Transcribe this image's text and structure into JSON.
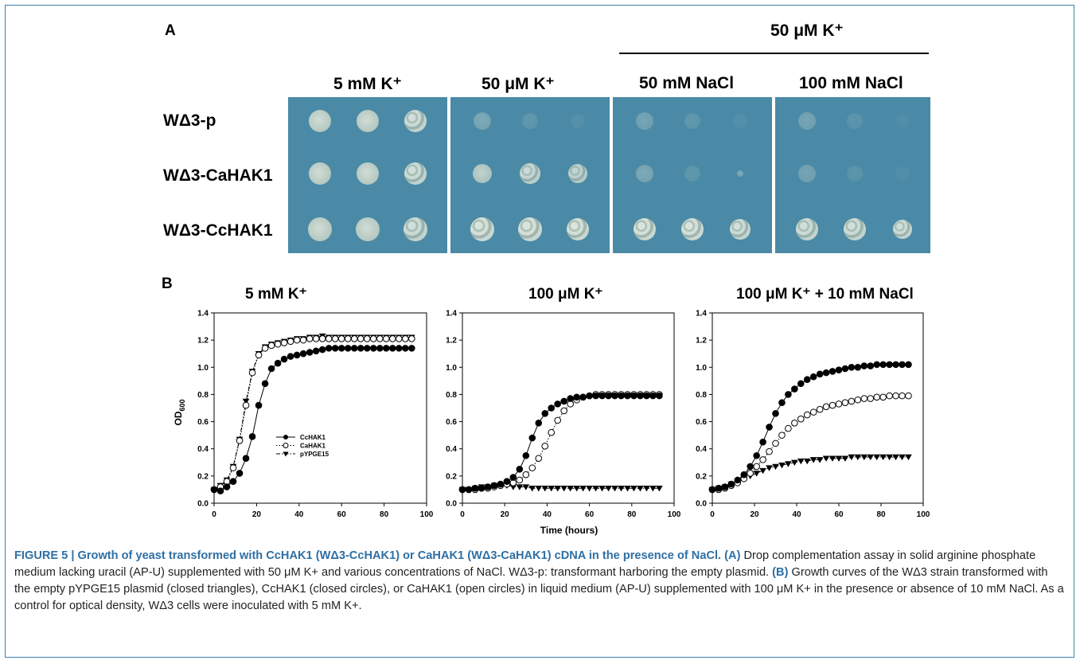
{
  "panel_a": {
    "letter": "A",
    "group_header": "50 μM K⁺",
    "column_headers": [
      "5 mM K⁺",
      "50 μM K⁺",
      "50 mM NaCl",
      "100 mM NaCl"
    ],
    "row_labels": [
      "WΔ3-p",
      "WΔ3-CaHAK1",
      "WΔ3-CcHAK1"
    ],
    "colors": {
      "agar": "#4a8aa6",
      "separator": "#ffffff"
    }
  },
  "panel_b": {
    "letter": "B",
    "ylabel": "OD600",
    "xlabel": "Time (hours)",
    "legend": [
      "CcHAK1",
      "CaHAK1",
      "pYPGE15"
    ]
  },
  "chart_data": [
    {
      "type": "scatter",
      "title": "5 mM K⁺",
      "xlabel": "",
      "ylabel": "OD600",
      "xlim": [
        0,
        100
      ],
      "ylim": [
        0,
        1.4
      ],
      "xticks": [
        0,
        20,
        40,
        60,
        80,
        100
      ],
      "yticks": [
        0.0,
        0.2,
        0.4,
        0.6,
        0.8,
        1.0,
        1.2,
        1.4
      ],
      "legend_position": "center-left",
      "series": [
        {
          "name": "CcHAK1",
          "marker": "filled-circle",
          "line": "solid",
          "x": [
            0,
            3,
            6,
            9,
            12,
            15,
            18,
            21,
            24,
            27,
            30,
            33,
            36,
            39,
            42,
            45,
            48,
            51,
            54,
            57,
            60,
            63,
            66,
            69,
            72,
            75,
            78,
            81,
            84,
            87,
            90,
            93
          ],
          "y": [
            0.1,
            0.09,
            0.12,
            0.16,
            0.22,
            0.33,
            0.49,
            0.72,
            0.88,
            0.99,
            1.03,
            1.06,
            1.08,
            1.09,
            1.1,
            1.11,
            1.12,
            1.13,
            1.14,
            1.14,
            1.14,
            1.14,
            1.14,
            1.14,
            1.14,
            1.14,
            1.14,
            1.14,
            1.14,
            1.14,
            1.14,
            1.14
          ]
        },
        {
          "name": "CaHAK1",
          "marker": "open-circle",
          "line": "dotted",
          "x": [
            0,
            3,
            6,
            9,
            12,
            15,
            18,
            21,
            24,
            27,
            30,
            33,
            36,
            39,
            42,
            45,
            48,
            51,
            54,
            57,
            60,
            63,
            66,
            69,
            72,
            75,
            78,
            81,
            84,
            87,
            90,
            93
          ],
          "y": [
            0.1,
            0.12,
            0.16,
            0.26,
            0.46,
            0.72,
            0.96,
            1.09,
            1.14,
            1.16,
            1.17,
            1.18,
            1.19,
            1.2,
            1.2,
            1.21,
            1.21,
            1.21,
            1.21,
            1.21,
            1.21,
            1.21,
            1.21,
            1.21,
            1.21,
            1.21,
            1.21,
            1.21,
            1.21,
            1.21,
            1.21,
            1.21
          ]
        },
        {
          "name": "pYPGE15",
          "marker": "filled-triangle-down",
          "line": "dash-dot",
          "x": [
            0,
            3,
            6,
            9,
            12,
            15,
            18,
            21,
            24,
            27,
            30,
            33,
            36,
            39,
            42,
            45,
            48,
            51,
            54,
            57,
            60,
            63,
            66,
            69,
            72,
            75,
            78,
            81,
            84,
            87,
            90,
            93
          ],
          "y": [
            0.1,
            0.13,
            0.17,
            0.27,
            0.47,
            0.75,
            0.97,
            1.1,
            1.15,
            1.17,
            1.18,
            1.19,
            1.2,
            1.21,
            1.21,
            1.22,
            1.22,
            1.23,
            1.22,
            1.22,
            1.22,
            1.22,
            1.22,
            1.22,
            1.22,
            1.22,
            1.22,
            1.22,
            1.22,
            1.22,
            1.22,
            1.22
          ]
        }
      ]
    },
    {
      "type": "scatter",
      "title": "100 μM K⁺",
      "xlabel": "Time (hours)",
      "ylabel": "",
      "xlim": [
        0,
        100
      ],
      "ylim": [
        0,
        1.4
      ],
      "xticks": [
        0,
        20,
        40,
        60,
        80,
        100
      ],
      "yticks": [
        0.0,
        0.2,
        0.4,
        0.6,
        0.8,
        1.0,
        1.2,
        1.4
      ],
      "series": [
        {
          "name": "CcHAK1",
          "marker": "filled-circle",
          "line": "solid",
          "x": [
            0,
            3,
            6,
            9,
            12,
            15,
            18,
            21,
            24,
            27,
            30,
            33,
            36,
            39,
            42,
            45,
            48,
            51,
            54,
            57,
            60,
            63,
            66,
            69,
            72,
            75,
            78,
            81,
            84,
            87,
            90,
            93
          ],
          "y": [
            0.1,
            0.1,
            0.11,
            0.11,
            0.12,
            0.13,
            0.14,
            0.16,
            0.19,
            0.25,
            0.35,
            0.48,
            0.59,
            0.66,
            0.7,
            0.73,
            0.75,
            0.77,
            0.78,
            0.78,
            0.79,
            0.79,
            0.79,
            0.79,
            0.79,
            0.79,
            0.79,
            0.79,
            0.79,
            0.79,
            0.79,
            0.79
          ]
        },
        {
          "name": "CaHAK1",
          "marker": "open-circle",
          "line": "dotted",
          "x": [
            0,
            3,
            6,
            9,
            12,
            15,
            18,
            21,
            24,
            27,
            30,
            33,
            36,
            39,
            42,
            45,
            48,
            51,
            54,
            57,
            60,
            63,
            66,
            69,
            72,
            75,
            78,
            81,
            84,
            87,
            90,
            93
          ],
          "y": [
            0.1,
            0.1,
            0.1,
            0.11,
            0.11,
            0.12,
            0.13,
            0.14,
            0.15,
            0.17,
            0.21,
            0.26,
            0.33,
            0.42,
            0.52,
            0.61,
            0.68,
            0.73,
            0.76,
            0.78,
            0.79,
            0.8,
            0.8,
            0.8,
            0.8,
            0.8,
            0.8,
            0.8,
            0.8,
            0.8,
            0.8,
            0.8
          ]
        },
        {
          "name": "pYPGE15",
          "marker": "filled-triangle-down",
          "line": "dash-dot",
          "x": [
            0,
            3,
            6,
            9,
            12,
            15,
            18,
            21,
            24,
            27,
            30,
            33,
            36,
            39,
            42,
            45,
            48,
            51,
            54,
            57,
            60,
            63,
            66,
            69,
            72,
            75,
            78,
            81,
            84,
            87,
            90,
            93
          ],
          "y": [
            0.1,
            0.1,
            0.11,
            0.12,
            0.12,
            0.13,
            0.13,
            0.13,
            0.12,
            0.12,
            0.12,
            0.11,
            0.11,
            0.11,
            0.11,
            0.11,
            0.11,
            0.11,
            0.11,
            0.11,
            0.11,
            0.11,
            0.11,
            0.11,
            0.11,
            0.11,
            0.11,
            0.11,
            0.11,
            0.11,
            0.11,
            0.11
          ]
        }
      ]
    },
    {
      "type": "scatter",
      "title": "100 μM K⁺ + 10 mM NaCl",
      "xlabel": "",
      "ylabel": "",
      "xlim": [
        0,
        100
      ],
      "ylim": [
        0,
        1.4
      ],
      "xticks": [
        0,
        20,
        40,
        60,
        80,
        100
      ],
      "yticks": [
        0.0,
        0.2,
        0.4,
        0.6,
        0.8,
        1.0,
        1.2,
        1.4
      ],
      "series": [
        {
          "name": "CcHAK1",
          "marker": "filled-circle",
          "line": "solid",
          "x": [
            0,
            3,
            6,
            9,
            12,
            15,
            18,
            21,
            24,
            27,
            30,
            33,
            36,
            39,
            42,
            45,
            48,
            51,
            54,
            57,
            60,
            63,
            66,
            69,
            72,
            75,
            78,
            81,
            84,
            87,
            90,
            93
          ],
          "y": [
            0.1,
            0.11,
            0.12,
            0.14,
            0.17,
            0.21,
            0.27,
            0.35,
            0.45,
            0.56,
            0.66,
            0.74,
            0.8,
            0.84,
            0.88,
            0.91,
            0.93,
            0.95,
            0.96,
            0.97,
            0.98,
            0.99,
            1.0,
            1.0,
            1.01,
            1.01,
            1.02,
            1.02,
            1.02,
            1.02,
            1.02,
            1.02
          ]
        },
        {
          "name": "CaHAK1",
          "marker": "open-circle",
          "line": "dotted",
          "x": [
            0,
            3,
            6,
            9,
            12,
            15,
            18,
            21,
            24,
            27,
            30,
            33,
            36,
            39,
            42,
            45,
            48,
            51,
            54,
            57,
            60,
            63,
            66,
            69,
            72,
            75,
            78,
            81,
            84,
            87,
            90,
            93
          ],
          "y": [
            0.1,
            0.1,
            0.11,
            0.13,
            0.15,
            0.18,
            0.22,
            0.27,
            0.32,
            0.38,
            0.44,
            0.5,
            0.55,
            0.59,
            0.62,
            0.65,
            0.67,
            0.69,
            0.71,
            0.72,
            0.73,
            0.74,
            0.75,
            0.76,
            0.77,
            0.77,
            0.78,
            0.78,
            0.79,
            0.79,
            0.79,
            0.79
          ]
        },
        {
          "name": "pYPGE15",
          "marker": "filled-triangle-down",
          "line": "dash-dot",
          "x": [
            0,
            3,
            6,
            9,
            12,
            15,
            18,
            21,
            24,
            27,
            30,
            33,
            36,
            39,
            42,
            45,
            48,
            51,
            54,
            57,
            60,
            63,
            66,
            69,
            72,
            75,
            78,
            81,
            84,
            87,
            90,
            93
          ],
          "y": [
            0.1,
            0.11,
            0.12,
            0.14,
            0.16,
            0.18,
            0.2,
            0.22,
            0.24,
            0.26,
            0.27,
            0.28,
            0.29,
            0.3,
            0.31,
            0.31,
            0.32,
            0.32,
            0.33,
            0.33,
            0.33,
            0.33,
            0.34,
            0.34,
            0.34,
            0.34,
            0.34,
            0.34,
            0.34,
            0.34,
            0.34,
            0.34
          ]
        }
      ]
    }
  ],
  "caption": {
    "title": "FIGURE 5 | Growth of yeast transformed with CcHAK1 (WΔ3-CcHAK1) or CaHAK1 (WΔ3-CaHAK1) cDNA in the presence of NaCl.",
    "part_a_letter": "(A)",
    "part_a_text": "Drop complementation assay in solid arginine phosphate medium lacking uracil (AP-U) supplemented with 50 μM K+ and various concentrations of NaCl. WΔ3-p: transformant harboring the empty plasmid.",
    "part_b_letter": "(B)",
    "part_b_text": "Growth curves of the WΔ3 strain transformed with the empty pYPGE15 plasmid (closed triangles), CcHAK1 (closed circles), or CaHAK1 (open circles) in liquid medium (AP-U) supplemented with 100 μM K+ in the presence or absence of 10 mM NaCl. As a control for optical density, WΔ3 cells were inoculated with 5 mM K+."
  }
}
